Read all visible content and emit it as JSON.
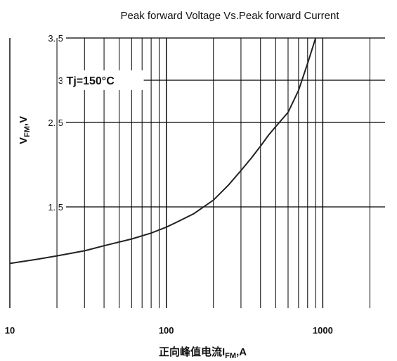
{
  "chart_data": {
    "type": "line",
    "title": "Peak forward Voltage Vs.Peak forward Current",
    "xlabel_main": "正向峰值电流I",
    "xlabel_sub": "FM",
    "xlabel_unit": ",A",
    "ylabel_main": "V",
    "ylabel_sub": "FM",
    "ylabel_unit": ",V",
    "x_scale": "log",
    "xlim": [
      10,
      2500
    ],
    "ylim": [
      0.3,
      3.5
    ],
    "x_ticks": [
      {
        "value": 10,
        "label": "10"
      },
      {
        "value": 100,
        "label": "100"
      },
      {
        "value": 1000,
        "label": "1000"
      }
    ],
    "y_ticks": [
      {
        "value": 3.5,
        "label": "3. 5"
      },
      {
        "value": 3.0,
        "label": "3"
      },
      {
        "value": 2.5,
        "label": "2. 5"
      },
      {
        "value": 1.5,
        "label": "1. 5"
      }
    ],
    "grid": true,
    "annotations": [
      {
        "text": "Tj=150°C",
        "x": 23,
        "y": 3.0
      }
    ],
    "series": [
      {
        "color": "#222222",
        "x": [
          10,
          15,
          20,
          30,
          40,
          60,
          80,
          100,
          120,
          150,
          200,
          250,
          300,
          350,
          400,
          450,
          500,
          600,
          700,
          800,
          900
        ],
        "y": [
          0.83,
          0.88,
          0.92,
          0.98,
          1.04,
          1.12,
          1.19,
          1.26,
          1.33,
          1.42,
          1.58,
          1.76,
          1.93,
          2.08,
          2.22,
          2.35,
          2.45,
          2.62,
          2.88,
          3.2,
          3.5
        ]
      }
    ]
  }
}
